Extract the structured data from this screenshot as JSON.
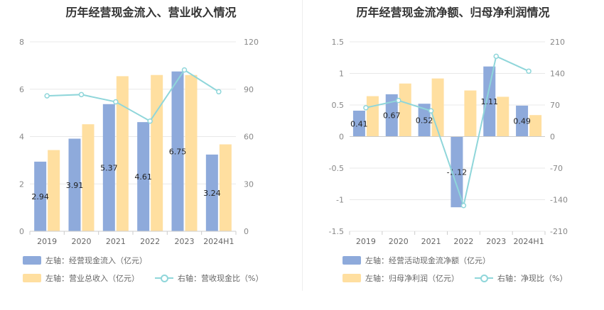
{
  "charts": [
    {
      "title": "历年经营现金流入、营业收入情况",
      "legend": [
        {
          "label": "左轴：经营现金流入（亿元）",
          "color": "#8eaadb"
        },
        {
          "label": "左轴：营业总收入（亿元）",
          "color": "#ffdfa0"
        },
        {
          "label": "右轴：营收现金比（%）",
          "color": "#8fd6da"
        }
      ]
    },
    {
      "title": "历年经营现金流净额、归母净利润情况",
      "legend": [
        {
          "label": "左轴：经营活动现金流净额（亿元）",
          "color": "#8eaadb"
        },
        {
          "label": "左轴：归母净利润（亿元）",
          "color": "#ffdfa0"
        },
        {
          "label": "右轴：净现比（%）",
          "color": "#8fd6da"
        }
      ]
    }
  ],
  "chart_data": [
    {
      "type": "bar",
      "title": "历年经营现金流入、营业收入情况",
      "categories": [
        "2019",
        "2020",
        "2021",
        "2022",
        "2023",
        "2024H1"
      ],
      "ylim_left": [
        0,
        8
      ],
      "yticks_left": [
        "0",
        "2",
        "4",
        "6",
        "8"
      ],
      "ylim_right": [
        0,
        120
      ],
      "yticks_right": [
        "0",
        "30",
        "60",
        "90",
        "120"
      ],
      "grid": true,
      "series": [
        {
          "name": "左轴：经营现金流入（亿元）",
          "type": "bar",
          "axis": "left",
          "color": "#8eaadb",
          "values": [
            2.94,
            3.91,
            5.37,
            4.61,
            6.75,
            3.24
          ],
          "labels": [
            "2.94",
            "3.91",
            "5.37",
            "4.61",
            "6.75",
            "3.24"
          ]
        },
        {
          "name": "左轴：营业总收入（亿元）",
          "type": "bar",
          "axis": "left",
          "color": "#ffdfa0",
          "values": [
            3.43,
            4.52,
            6.55,
            6.6,
            6.6,
            3.67
          ]
        },
        {
          "name": "右轴：营收现金比（%）",
          "type": "line",
          "axis": "right",
          "color": "#8fd6da",
          "values": [
            85.8,
            86.6,
            82.0,
            69.8,
            102.2,
            88.4
          ]
        }
      ]
    },
    {
      "type": "bar",
      "title": "历年经营现金流净额、归母净利润情况",
      "categories": [
        "2019",
        "2020",
        "2021",
        "2022",
        "2023",
        "2024H1"
      ],
      "ylim_left": [
        -1.5,
        1.5
      ],
      "yticks_left": [
        "-1.5",
        "-1",
        "-0.5",
        "0",
        "0.5",
        "1",
        "1.5"
      ],
      "ylim_right": [
        -210,
        210
      ],
      "yticks_right": [
        "-210",
        "-140",
        "-70",
        "0",
        "70",
        "140",
        "210"
      ],
      "grid": true,
      "series": [
        {
          "name": "左轴：经营活动现金流净额（亿元）",
          "type": "bar",
          "axis": "left",
          "color": "#8eaadb",
          "values": [
            0.41,
            0.67,
            0.52,
            -1.12,
            1.11,
            0.49
          ],
          "labels": [
            "0.41",
            "0.67",
            "0.52",
            "-1.12",
            "1.11",
            "0.49"
          ]
        },
        {
          "name": "左轴：归母净利润（亿元）",
          "type": "bar",
          "axis": "left",
          "color": "#ffdfa0",
          "values": [
            0.64,
            0.84,
            0.92,
            0.73,
            0.63,
            0.34
          ]
        },
        {
          "name": "右轴：净现比（%）",
          "type": "line",
          "axis": "right",
          "color": "#8fd6da",
          "values": [
            64,
            80,
            57,
            -153,
            178,
            145
          ]
        }
      ]
    }
  ]
}
